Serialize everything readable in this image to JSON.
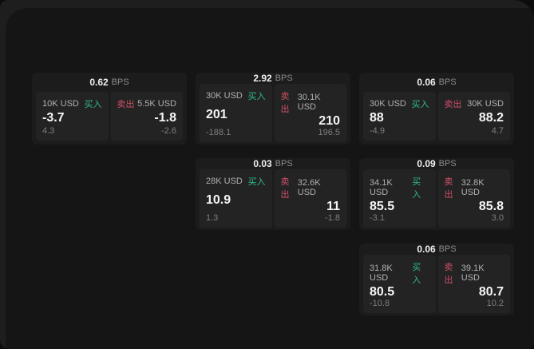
{
  "labels": {
    "buy": "买入",
    "sell": "卖出",
    "bps_suffix": "BPS"
  },
  "colors": {
    "buy_green": "#2ebd85",
    "sell_red": "#ce5065",
    "card_bg": "#1c1c1d",
    "panel_bg": "#232324",
    "page_bg": "#151516"
  },
  "cards": [
    {
      "bps": "0.62",
      "row": 1,
      "col": 1,
      "buy": {
        "amount": "10K USD",
        "value": "-3.7",
        "change": "4.3"
      },
      "sell": {
        "amount": "5.5K USD",
        "value": "-1.8",
        "change": "-2.6"
      }
    },
    {
      "bps": "2.92",
      "row": 1,
      "col": 2,
      "buy": {
        "amount": "30K USD",
        "value": "201",
        "change": "-188.1"
      },
      "sell": {
        "amount": "30.1K USD",
        "value": "210",
        "change": "196.5"
      }
    },
    {
      "bps": "0.06",
      "row": 1,
      "col": 3,
      "buy": {
        "amount": "30K USD",
        "value": "88",
        "change": "-4.9"
      },
      "sell": {
        "amount": "30K USD",
        "value": "88.2",
        "change": "4.7"
      }
    },
    {
      "bps": "0.03",
      "row": 2,
      "col": 2,
      "buy": {
        "amount": "28K USD",
        "value": "10.9",
        "change": "1.3"
      },
      "sell": {
        "amount": "32.6K USD",
        "value": "11",
        "change": "-1.8"
      }
    },
    {
      "bps": "0.09",
      "row": 2,
      "col": 3,
      "buy": {
        "amount": "34.1K USD",
        "value": "85.5",
        "change": "-3.1"
      },
      "sell": {
        "amount": "32.8K USD",
        "value": "85.8",
        "change": "3.0"
      }
    },
    {
      "bps": "0.06",
      "row": 3,
      "col": 3,
      "buy": {
        "amount": "31.8K USD",
        "value": "80.5",
        "change": "-10.8"
      },
      "sell": {
        "amount": "39.1K USD",
        "value": "80.7",
        "change": "10.2"
      }
    }
  ]
}
